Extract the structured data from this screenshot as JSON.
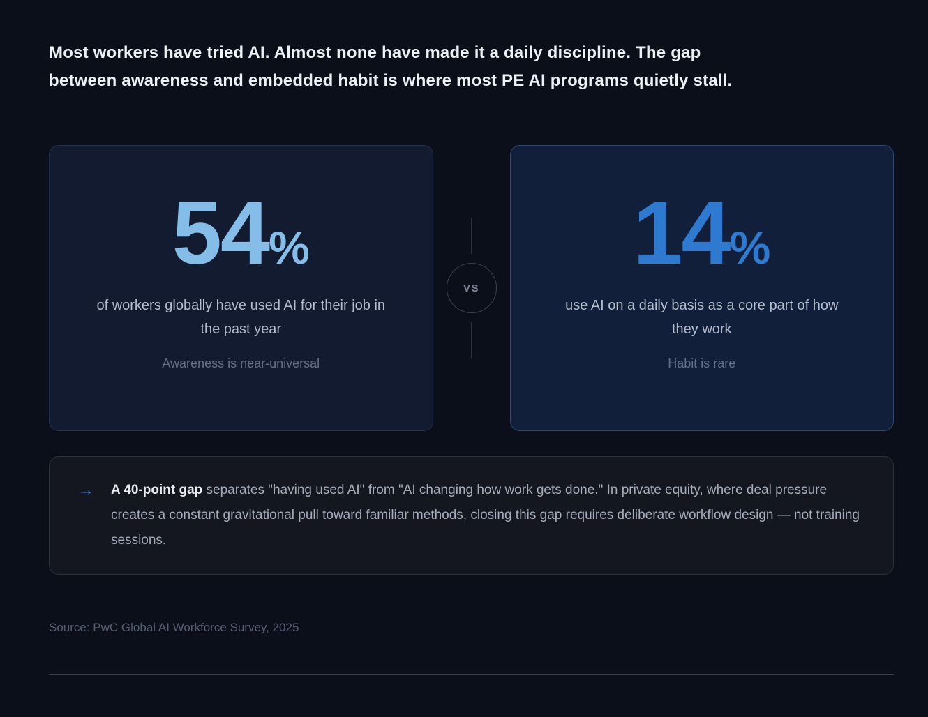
{
  "header": {
    "title": "Most workers have tried AI. Almost none have made it a daily discipline. The gap between awareness and embedded habit is where most PE AI programs quietly stall."
  },
  "comparison": {
    "vs_label": "VS",
    "left": {
      "value": "54",
      "unit": "%",
      "description": "of workers globally have used AI for their job in the past year",
      "note": "Awareness is near-universal",
      "accent": "#85bde9"
    },
    "right": {
      "value": "14",
      "unit": "%",
      "description": "use AI on a daily basis as a core part of how they work",
      "note": "Habit is rare",
      "accent": "#2e7ad1"
    }
  },
  "callout": {
    "arrow_icon": "→",
    "arrow_color": "#3f86dd",
    "lead": "A 40-point gap",
    "body": "separates \"having used AI\" from \"AI changing how work gets done.\" In private equity, where deal pressure creates a constant gravitational pull toward familiar methods, closing this gap requires deliberate workflow design — not training sessions."
  },
  "source": "Source: PwC Global AI Workforce Survey, 2025"
}
